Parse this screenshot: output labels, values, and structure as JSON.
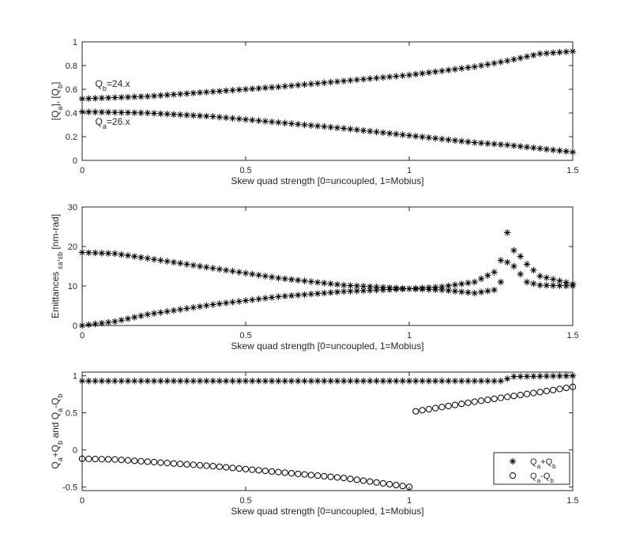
{
  "chart_data": [
    {
      "type": "scatter",
      "xlabel": "Skew quad strength [0=uncoupled, 1=Mobius]",
      "ylabel_parts": [
        {
          "t": "[Q"
        },
        {
          "t": "a",
          "sub": true
        },
        {
          "t": "], [Q"
        },
        {
          "t": "b",
          "sub": true
        },
        {
          "t": "]"
        }
      ],
      "xlim": [
        0,
        1.5
      ],
      "ylim": [
        0,
        1
      ],
      "xticks": [
        0,
        0.5,
        1,
        1.5
      ],
      "xtick_labels": [
        "0",
        "0.5",
        "1",
        "1.5"
      ],
      "yticks": [
        0,
        0.2,
        0.4,
        0.6,
        0.8,
        1
      ],
      "ytick_labels": [
        "0",
        "0.2",
        "0.4",
        "0.6",
        "0.8",
        "1"
      ],
      "annotations": [
        {
          "x": 0.04,
          "y": 0.62,
          "parts": [
            {
              "t": "Q"
            },
            {
              "t": "b",
              "sub": true
            },
            {
              "t": "=24.x"
            }
          ]
        },
        {
          "x": 0.04,
          "y": 0.3,
          "parts": [
            {
              "t": "Q"
            },
            {
              "t": "a",
              "sub": true
            },
            {
              "t": "=26.x"
            }
          ]
        }
      ],
      "series": [
        {
          "marker": "asterisk",
          "x_start": 0,
          "x_step": 0.02,
          "count": 76,
          "anchors": [
            [
              0,
              0.52
            ],
            [
              0.2,
              0.54
            ],
            [
              0.4,
              0.58
            ],
            [
              0.6,
              0.62
            ],
            [
              0.8,
              0.67
            ],
            [
              1.0,
              0.72
            ],
            [
              1.2,
              0.79
            ],
            [
              1.3,
              0.84
            ],
            [
              1.4,
              0.9
            ],
            [
              1.5,
              0.92
            ]
          ]
        },
        {
          "marker": "asterisk",
          "x_start": 0,
          "x_step": 0.02,
          "count": 76,
          "anchors": [
            [
              0,
              0.41
            ],
            [
              0.2,
              0.4
            ],
            [
              0.4,
              0.37
            ],
            [
              0.6,
              0.32
            ],
            [
              0.8,
              0.27
            ],
            [
              1.0,
              0.21
            ],
            [
              1.2,
              0.15
            ],
            [
              1.3,
              0.13
            ],
            [
              1.4,
              0.1
            ],
            [
              1.5,
              0.07
            ]
          ]
        }
      ]
    },
    {
      "type": "scatter",
      "xlabel": "Skew quad strength [0=uncoupled, 1=Mobius]",
      "ylabel_parts": [
        {
          "t": "Emittances "
        },
        {
          "t": "ε",
          "sub": true
        },
        {
          "t": "a",
          "sub": true
        },
        {
          "t": ","
        },
        {
          "t": "ε",
          "sub": true
        },
        {
          "t": "b",
          "sub": true
        },
        {
          "t": " [nm-rad]"
        }
      ],
      "xlim": [
        0,
        1.5
      ],
      "ylim": [
        0,
        30
      ],
      "xticks": [
        0,
        0.5,
        1,
        1.5
      ],
      "xtick_labels": [
        "0",
        "0.5",
        "1",
        "1.5"
      ],
      "yticks": [
        0,
        10,
        20,
        30
      ],
      "ytick_labels": [
        "0",
        "10",
        "20",
        "30"
      ],
      "series": [
        {
          "marker": "asterisk",
          "x_start": 0,
          "x_step": 0.02,
          "count": 76,
          "anchors": [
            [
              0,
              18.5
            ],
            [
              0.1,
              18.2
            ],
            [
              0.2,
              17
            ],
            [
              0.4,
              14.5
            ],
            [
              0.6,
              12
            ],
            [
              0.8,
              10.2
            ],
            [
              1.0,
              9.3
            ],
            [
              1.1,
              9
            ],
            [
              1.2,
              8.2
            ],
            [
              1.26,
              9
            ],
            [
              1.28,
              11
            ],
            [
              1.3,
              16
            ],
            [
              1.32,
              15
            ],
            [
              1.34,
              13
            ],
            [
              1.36,
              11
            ],
            [
              1.4,
              10.2
            ],
            [
              1.5,
              10
            ]
          ]
        },
        {
          "marker": "asterisk",
          "x_start": 0,
          "x_step": 0.02,
          "count": 76,
          "anchors": [
            [
              0,
              0
            ],
            [
              0.1,
              1
            ],
            [
              0.2,
              2.8
            ],
            [
              0.4,
              5.3
            ],
            [
              0.6,
              7.3
            ],
            [
              0.8,
              8.6
            ],
            [
              1.0,
              9.3
            ],
            [
              1.1,
              9.8
            ],
            [
              1.2,
              11
            ],
            [
              1.26,
              13.5
            ],
            [
              1.28,
              16.5
            ],
            [
              1.3,
              23.5
            ],
            [
              1.31,
              30
            ],
            [
              1.32,
              19
            ],
            [
              1.34,
              17.5
            ],
            [
              1.36,
              15.5
            ],
            [
              1.4,
              12.5
            ],
            [
              1.5,
              10.5
            ]
          ]
        }
      ]
    },
    {
      "type": "scatter",
      "xlabel": "Skew quad strength [0=uncoupled, 1=Mobius]",
      "ylabel_parts": [
        {
          "t": "Q"
        },
        {
          "t": "a",
          "sub": true
        },
        {
          "t": "+Q"
        },
        {
          "t": "b",
          "sub": true
        },
        {
          "t": " and Q"
        },
        {
          "t": "a",
          "sub": true
        },
        {
          "t": "-Q"
        },
        {
          "t": "b",
          "sub": true
        }
      ],
      "xlim": [
        0,
        1.5
      ],
      "ylim": [
        -0.55,
        1.05
      ],
      "xticks": [
        0,
        0.5,
        1,
        1.5
      ],
      "xtick_labels": [
        "0",
        "0.5",
        "1",
        "1.5"
      ],
      "yticks": [
        -0.5,
        0,
        0.5,
        1
      ],
      "ytick_labels": [
        "-0.5",
        "0",
        "0.5",
        "1"
      ],
      "legend": {
        "location": "bottom-right",
        "entries": [
          {
            "marker": "asterisk",
            "parts": [
              {
                "t": "Q"
              },
              {
                "t": "a",
                "sub": true
              },
              {
                "t": "+Q"
              },
              {
                "t": "b",
                "sub": true
              }
            ]
          },
          {
            "marker": "circle",
            "parts": [
              {
                "t": "Q"
              },
              {
                "t": "a",
                "sub": true
              },
              {
                "t": "-Q"
              },
              {
                "t": "b",
                "sub": true
              }
            ]
          }
        ]
      },
      "series": [
        {
          "marker": "asterisk",
          "x_start": 0,
          "x_step": 0.02,
          "count": 76,
          "anchors": [
            [
              0,
              0.93
            ],
            [
              1.28,
              0.93
            ],
            [
              1.3,
              0.96
            ],
            [
              1.32,
              0.99
            ],
            [
              1.5,
              1.0
            ]
          ]
        },
        {
          "marker": "circle",
          "x_start": 0,
          "x_step": 0.02,
          "count": 51,
          "anchors": [
            [
              0,
              -0.12
            ],
            [
              0.1,
              -0.13
            ],
            [
              0.2,
              -0.16
            ],
            [
              0.4,
              -0.22
            ],
            [
              0.6,
              -0.3
            ],
            [
              0.8,
              -0.38
            ],
            [
              1.0,
              -0.5
            ]
          ]
        },
        {
          "marker": "circle",
          "x_start": 1.02,
          "x_step": 0.02,
          "count": 25,
          "anchors": [
            [
              1.02,
              0.52
            ],
            [
              1.2,
              0.65
            ],
            [
              1.4,
              0.78
            ],
            [
              1.5,
              0.85
            ]
          ]
        }
      ]
    }
  ]
}
